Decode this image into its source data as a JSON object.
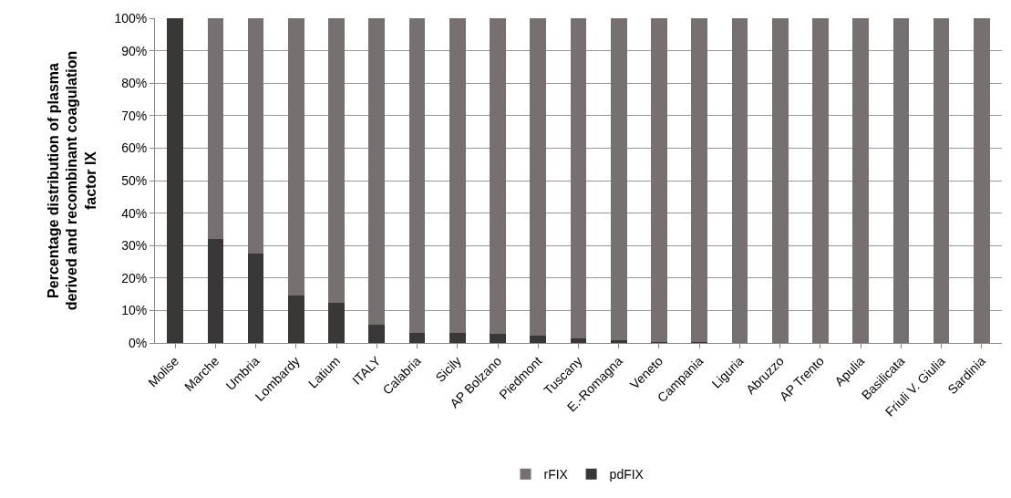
{
  "chart_data": {
    "type": "bar",
    "stacked": true,
    "ylabel": "Percentage distribution of plasma derived and recombinant coagulation factor IX",
    "categories": [
      "Molise",
      "Marche",
      "Umbria",
      "Lombardy",
      "Latium",
      "ITALY",
      "Calabria",
      "Sicily",
      "AP Bolzano",
      "Piedmont",
      "Tuscany",
      "E.-Romagna",
      "Veneto",
      "Campania",
      "Liguria",
      "Abruzzo",
      "AP Trento",
      "Apulia",
      "Basilicata",
      "Friuli V. Giulia",
      "Sardinia"
    ],
    "series": [
      {
        "name": "pdFIX",
        "color": "#3a3836",
        "values": [
          100,
          32,
          27.5,
          14.5,
          12.4,
          5.6,
          3.2,
          3.0,
          2.7,
          2.2,
          1.4,
          0.8,
          0.4,
          0.3,
          0,
          0,
          0,
          0,
          0,
          0,
          0
        ]
      },
      {
        "name": "rFIX",
        "color": "#767170",
        "values": [
          0,
          68,
          72.5,
          85.5,
          87.6,
          94.4,
          96.8,
          97.0,
          97.3,
          97.8,
          98.6,
          99.2,
          99.6,
          99.7,
          100,
          100,
          100,
          100,
          100,
          100,
          100
        ]
      }
    ],
    "ylim": [
      0,
      100
    ],
    "yticks": [
      {
        "value": 0,
        "label": "0%"
      },
      {
        "value": 10,
        "label": "10%"
      },
      {
        "value": 20,
        "label": "20%"
      },
      {
        "value": 30,
        "label": "30%"
      },
      {
        "value": 40,
        "label": "40%"
      },
      {
        "value": 50,
        "label": "50%"
      },
      {
        "value": 60,
        "label": "60%"
      },
      {
        "value": 70,
        "label": "70%"
      },
      {
        "value": 80,
        "label": "80%"
      },
      {
        "value": 90,
        "label": "90%"
      },
      {
        "value": 100,
        "label": "100%"
      }
    ],
    "grid": "y",
    "legend": "bottom"
  }
}
